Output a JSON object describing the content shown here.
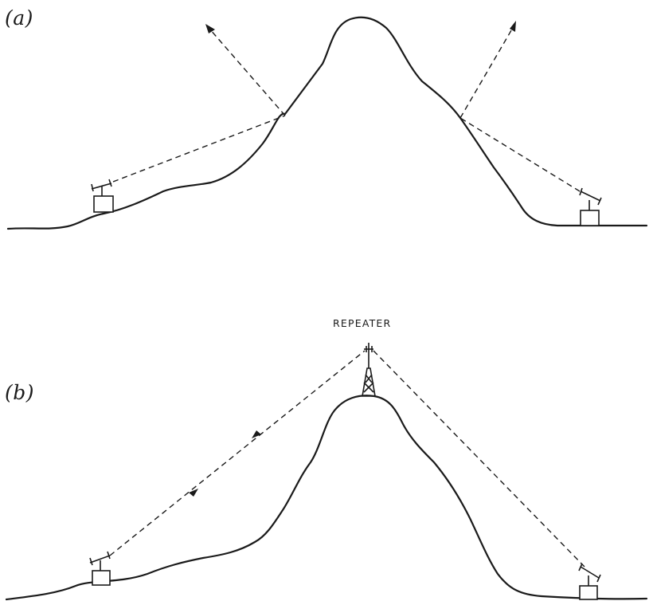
{
  "figure": {
    "panel_a_label": "(a)",
    "panel_b_label": "(b)",
    "repeater_label": "REPEATER"
  },
  "colors": {
    "ink": "#1a1a1a",
    "background": "#ffffff"
  }
}
